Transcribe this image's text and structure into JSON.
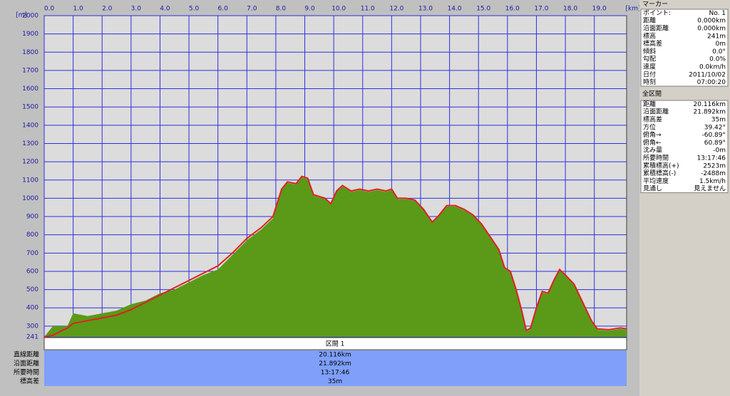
{
  "chart_data": {
    "type": "area",
    "y_unit": "[m]",
    "x_unit": "[km]",
    "x": [
      0,
      0.3,
      0.8,
      1.0,
      1.5,
      2.0,
      2.5,
      3.0,
      3.5,
      4.0,
      4.5,
      5.0,
      5.5,
      6.0,
      6.5,
      7.0,
      7.5,
      7.9,
      8.2,
      8.4,
      8.7,
      8.9,
      9.1,
      9.3,
      9.7,
      9.9,
      10.1,
      10.3,
      10.6,
      10.9,
      11.2,
      11.5,
      11.8,
      12.0,
      12.2,
      12.5,
      12.8,
      13.1,
      13.4,
      13.6,
      13.9,
      14.2,
      14.5,
      14.8,
      15.1,
      15.4,
      15.7,
      15.9,
      16.1,
      16.3,
      16.5,
      16.65,
      16.8,
      17.0,
      17.2,
      17.4,
      17.6,
      17.8,
      18.0,
      18.3,
      18.6,
      18.9,
      19.1,
      19.5,
      19.9,
      20.116
    ],
    "series": [
      {
        "color": "#5a9a18",
        "values": [
          241,
          300,
          300,
          370,
          355,
          370,
          385,
          420,
          440,
          480,
          500,
          540,
          580,
          610,
          690,
          770,
          830,
          890,
          1045,
          1085,
          1075,
          1115,
          1105,
          1015,
          995,
          965,
          1035,
          1065,
          1035,
          1045,
          1035,
          1045,
          1035,
          1045,
          995,
          995,
          985,
          935,
          865,
          895,
          955,
          955,
          935,
          905,
          855,
          785,
          715,
          615,
          595,
          495,
          375,
          270,
          285,
          395,
          485,
          475,
          545,
          605,
          575,
          525,
          425,
          325,
          280,
          275,
          285,
          280
        ]
      },
      {
        "color": "#e02020",
        "values": [
          241,
          250,
          290,
          315,
          330,
          345,
          360,
          390,
          430,
          470,
          510,
          550,
          590,
          630,
          700,
          780,
          840,
          900,
          1050,
          1090,
          1080,
          1120,
          1110,
          1020,
          1000,
          970,
          1040,
          1070,
          1040,
          1050,
          1040,
          1050,
          1040,
          1050,
          1000,
          1000,
          990,
          940,
          870,
          900,
          960,
          960,
          940,
          910,
          860,
          790,
          720,
          620,
          600,
          500,
          380,
          275,
          290,
          400,
          490,
          480,
          550,
          610,
          580,
          530,
          430,
          330,
          285,
          280,
          290,
          285
        ]
      }
    ],
    "xlim": [
      0,
      20.116
    ],
    "ylim": [
      241,
      2000
    ],
    "xticks": [
      {
        "value": 0,
        "label": "0.0"
      },
      {
        "value": 1,
        "label": "1.0"
      },
      {
        "value": 2,
        "label": "2.0"
      },
      {
        "value": 3,
        "label": "3.0"
      },
      {
        "value": 4,
        "label": "4.0"
      },
      {
        "value": 5,
        "label": "5.0"
      },
      {
        "value": 6,
        "label": "6.0"
      },
      {
        "value": 7,
        "label": "7.0"
      },
      {
        "value": 8,
        "label": "8.0"
      },
      {
        "value": 9,
        "label": "9.0"
      },
      {
        "value": 10,
        "label": "10.0"
      },
      {
        "value": 11,
        "label": "11.0"
      },
      {
        "value": 12,
        "label": "12.0"
      },
      {
        "value": 13,
        "label": "13.0"
      },
      {
        "value": 14,
        "label": "14.0"
      },
      {
        "value": 15,
        "label": "15.0"
      },
      {
        "value": 16,
        "label": "16.0"
      },
      {
        "value": 17,
        "label": "17.0"
      },
      {
        "value": 18,
        "label": "18.0"
      },
      {
        "value": 19,
        "label": "19.0"
      }
    ],
    "yticks": [
      241,
      300,
      400,
      500,
      600,
      700,
      800,
      900,
      1000,
      1100,
      1200,
      1300,
      1400,
      1500,
      1600,
      1700,
      1800,
      1900,
      2000
    ],
    "grid": true
  },
  "summary": {
    "header": "区間 1",
    "rows": [
      [
        "直線距離",
        "20.116km"
      ],
      [
        "沿面距離",
        "21.892km"
      ],
      [
        "所要時間",
        "13:17:46"
      ],
      [
        "標高差",
        "35m"
      ]
    ]
  },
  "marker_panel": {
    "title": "マーカー",
    "rows": [
      [
        "ポイント:",
        "No. 1"
      ],
      [
        "距離",
        "0.000km"
      ],
      [
        "沿面距離",
        "0.000km"
      ],
      [
        "標高",
        "241m"
      ],
      [
        "標高差",
        "0m"
      ],
      [
        "傾斜",
        "0.0°"
      ],
      [
        "勾配",
        "0.0%"
      ],
      [
        "速度",
        "0.0km/h"
      ],
      [
        "日付",
        "2011/10/02"
      ],
      [
        "時刻",
        "07:00:20"
      ]
    ]
  },
  "section_panel": {
    "title": "全区間",
    "rows": [
      [
        "距離",
        "20.116km"
      ],
      [
        "沿面距離",
        "21.892km"
      ],
      [
        "標高差",
        "35m"
      ],
      [
        "方位",
        "39.42°"
      ],
      [
        "俯角→",
        "-60.89°"
      ],
      [
        "俯角←",
        "60.89°"
      ],
      [
        "沈み量",
        "-0m"
      ],
      [
        "所要時間",
        "13:17:46"
      ],
      [
        "累積標高(+)",
        "2523m"
      ],
      [
        "累積標高(-)",
        "-2488m"
      ],
      [
        "平均速度",
        "1.5km/h"
      ],
      [
        "見通し",
        "見えません"
      ]
    ]
  }
}
